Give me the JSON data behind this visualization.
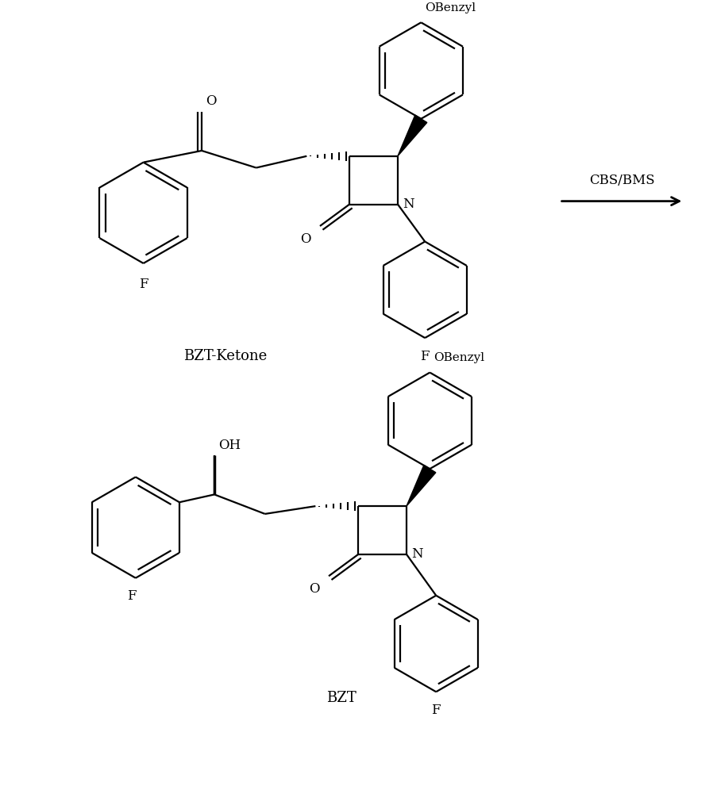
{
  "background_color": "#ffffff",
  "line_width": 1.6,
  "figsize": [
    8.98,
    9.96
  ],
  "dpi": 100,
  "label_bzt_ketone": "BZT-Ketone",
  "label_bzt": "BZT",
  "label_reaction": "CBS/BMS",
  "label_obenzyl": "OBenzyl",
  "label_o": "O",
  "label_f": "F",
  "label_n": "N",
  "label_oh": "OH"
}
